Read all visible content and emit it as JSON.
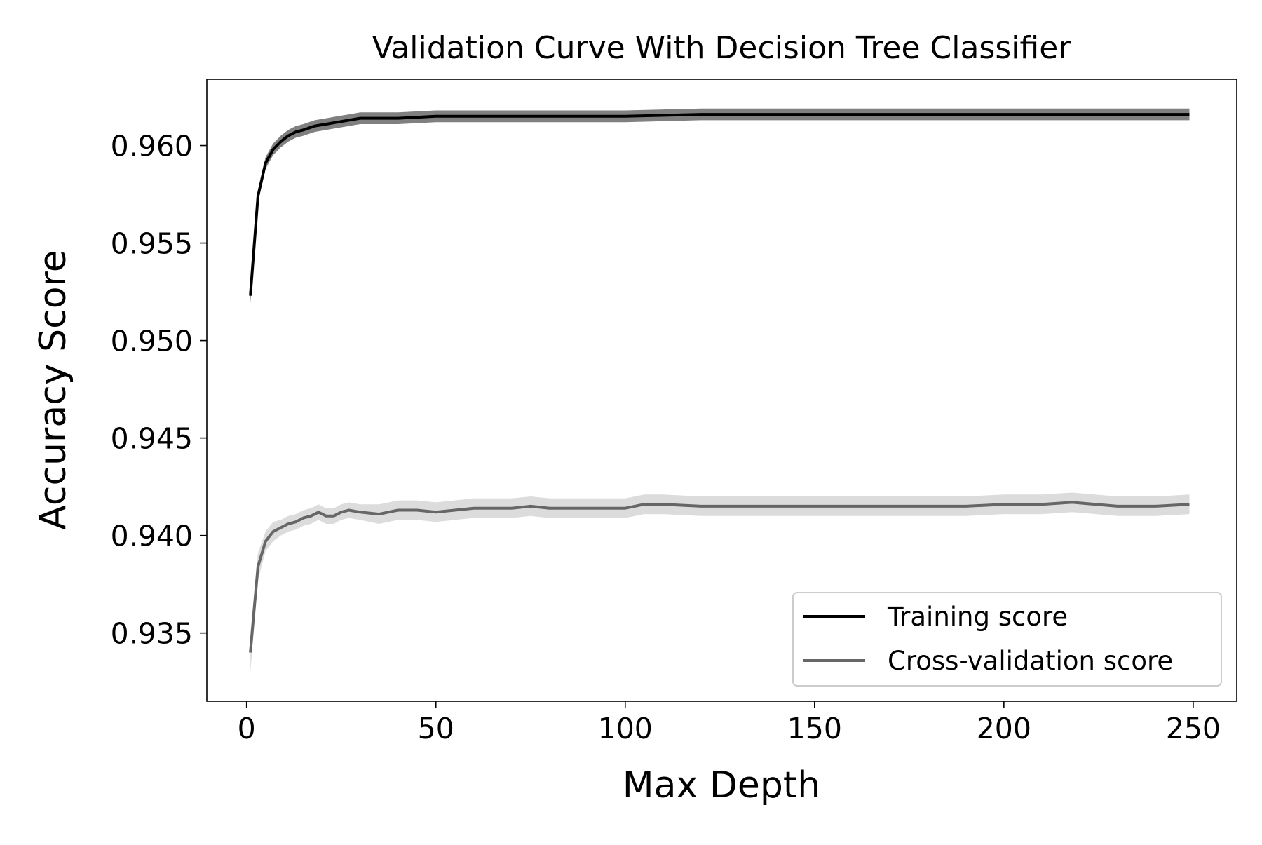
{
  "chart_data": {
    "type": "line",
    "title": "Validation Curve With Decision Tree Classifier",
    "xlabel": "Max Depth",
    "ylabel": "Accuracy Score",
    "xlim": [
      -10.5,
      261.5
    ],
    "ylim": [
      0.9315,
      0.9634
    ],
    "x_ticks": [
      0,
      50,
      100,
      150,
      200,
      250
    ],
    "x_tick_labels": [
      "0",
      "50",
      "100",
      "150",
      "200",
      "250"
    ],
    "y_ticks": [
      0.935,
      0.94,
      0.945,
      0.95,
      0.955,
      0.96
    ],
    "y_tick_labels": [
      "0.935",
      "0.940",
      "0.945",
      "0.950",
      "0.955",
      "0.960"
    ],
    "grid": false,
    "legend_position": "lower-right",
    "series": [
      {
        "name": "Training score",
        "color": "#000000",
        "band_color": "#808080",
        "x": [
          1,
          3,
          5,
          7,
          9,
          11,
          13,
          15,
          18,
          21,
          24,
          27,
          30,
          35,
          40,
          50,
          60,
          70,
          80,
          90,
          100,
          120,
          140,
          160,
          180,
          200,
          220,
          249
        ],
        "values": [
          0.9523,
          0.9574,
          0.9591,
          0.9598,
          0.9602,
          0.9605,
          0.9607,
          0.9608,
          0.961,
          0.9611,
          0.9612,
          0.9613,
          0.9614,
          0.9614,
          0.9614,
          0.9615,
          0.9615,
          0.9615,
          0.9615,
          0.9615,
          0.9615,
          0.9616,
          0.9616,
          0.9616,
          0.9616,
          0.9616,
          0.9616,
          0.9616
        ],
        "band": [
          0.0004,
          0.0003,
          0.0003,
          0.0003,
          0.0003,
          0.0003,
          0.0003,
          0.0003,
          0.0003,
          0.0003,
          0.0003,
          0.0003,
          0.0003,
          0.0003,
          0.0003,
          0.0003,
          0.0003,
          0.0003,
          0.0003,
          0.0003,
          0.0003,
          0.0003,
          0.0003,
          0.0003,
          0.0003,
          0.0003,
          0.0003,
          0.0003
        ]
      },
      {
        "name": "Cross-validation score",
        "color": "#666666",
        "band_color": "#dcdcdc",
        "x": [
          1,
          3,
          5,
          7,
          9,
          11,
          13,
          15,
          17,
          19,
          21,
          23,
          25,
          27,
          30,
          35,
          40,
          45,
          50,
          55,
          60,
          70,
          75,
          80,
          90,
          100,
          105,
          110,
          120,
          130,
          140,
          150,
          160,
          170,
          180,
          190,
          200,
          210,
          218,
          230,
          240,
          249
        ],
        "values": [
          0.934,
          0.9384,
          0.9397,
          0.9402,
          0.9404,
          0.9406,
          0.9407,
          0.9409,
          0.941,
          0.9412,
          0.941,
          0.941,
          0.9412,
          0.9413,
          0.9412,
          0.9411,
          0.9413,
          0.9413,
          0.9412,
          0.9413,
          0.9414,
          0.9414,
          0.9415,
          0.9414,
          0.9414,
          0.9414,
          0.9416,
          0.9416,
          0.9415,
          0.9415,
          0.9415,
          0.9415,
          0.9415,
          0.9415,
          0.9415,
          0.9415,
          0.9416,
          0.9416,
          0.9417,
          0.9415,
          0.9415,
          0.9416
        ],
        "band": [
          0.001,
          0.0007,
          0.0005,
          0.0005,
          0.0004,
          0.0004,
          0.0004,
          0.0004,
          0.0004,
          0.0004,
          0.0004,
          0.0004,
          0.0004,
          0.0004,
          0.0004,
          0.0005,
          0.0005,
          0.0005,
          0.0005,
          0.0005,
          0.0005,
          0.0005,
          0.0005,
          0.0005,
          0.0005,
          0.0005,
          0.0005,
          0.0005,
          0.0005,
          0.0005,
          0.0005,
          0.0005,
          0.0005,
          0.0005,
          0.0005,
          0.0005,
          0.0005,
          0.0005,
          0.0005,
          0.0005,
          0.0005,
          0.0005
        ]
      }
    ]
  }
}
